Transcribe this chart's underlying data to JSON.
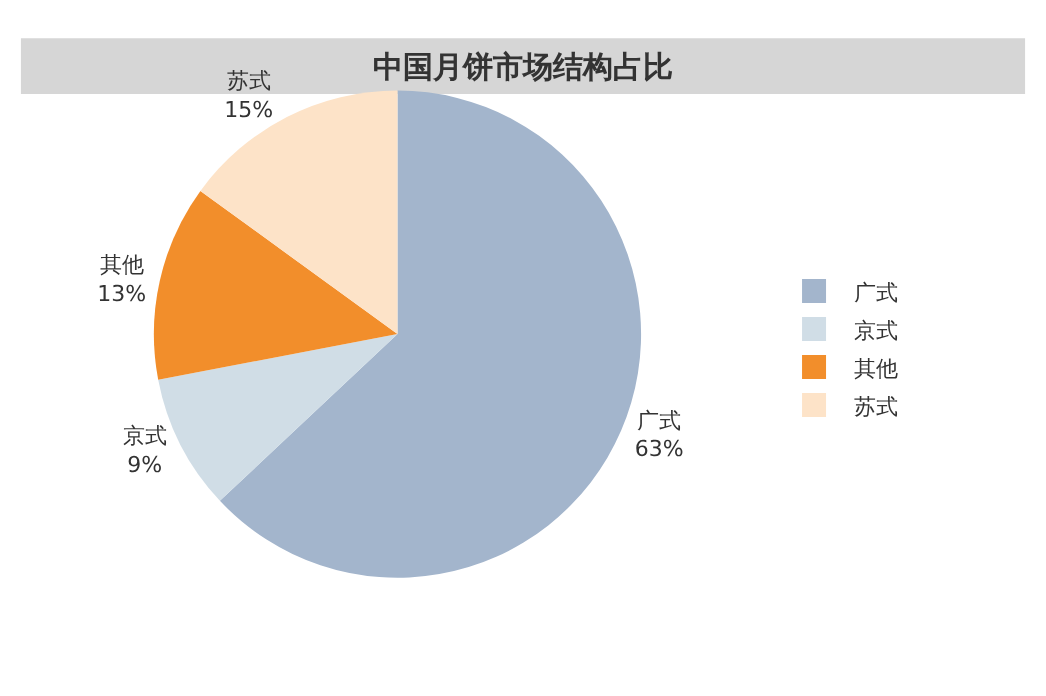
{
  "chart_data": {
    "type": "pie",
    "title": "中国月饼市场结构占比",
    "categories": [
      "广式",
      "京式",
      "其他",
      "苏式"
    ],
    "values": [
      63,
      9,
      13,
      15
    ],
    "value_labels": [
      "63%",
      "9%",
      "13%",
      "15%"
    ],
    "colors": [
      "#a3b5cc",
      "#d0dde6",
      "#f28e2b",
      "#fde3c8"
    ],
    "legend": "right"
  }
}
